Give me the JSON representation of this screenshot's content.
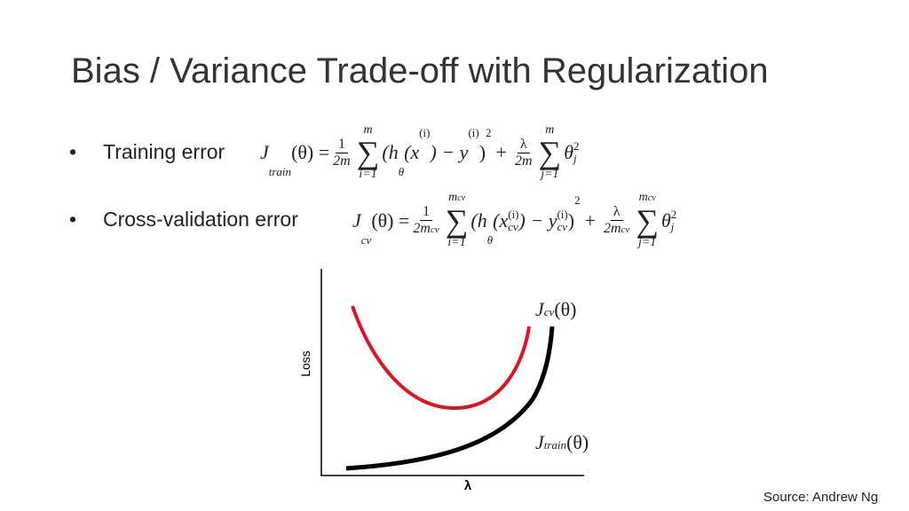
{
  "title": "Bias / Variance Trade-off with Regularization",
  "bullets": [
    "Training error",
    "Cross-validation error"
  ],
  "training_formula": [
    "J",
    "train",
    "(θ) =",
    "1",
    "2m",
    "∑",
    "m",
    "i=1",
    "(h",
    "θ",
    "(x",
    "(i)",
    ") − y",
    "(i)",
    ")",
    "2",
    "+",
    "λ",
    "2m",
    "∑",
    "m",
    "j=1",
    "θ",
    "j",
    "2"
  ],
  "cv_formula": [
    "J",
    "cv",
    "(θ) =",
    "1",
    "2m",
    "cv",
    "∑",
    "m",
    "cv",
    "i=1",
    "(h",
    "θ",
    "(x",
    "(i)",
    "cv",
    ") − y",
    "(i)",
    "cv",
    ")",
    "2",
    "+",
    "λ",
    "2m",
    "cv",
    "∑",
    "m",
    "cv",
    "j=1",
    "θ",
    "j",
    "2"
  ],
  "figure": {
    "y_label": "Loss",
    "x_label": "λ",
    "cv_curve_label": [
      "J",
      "cv",
      "(θ)"
    ],
    "train_curve_label": [
      "J",
      "train",
      "(θ)"
    ]
  },
  "source": "Source: Andrew Ng"
}
